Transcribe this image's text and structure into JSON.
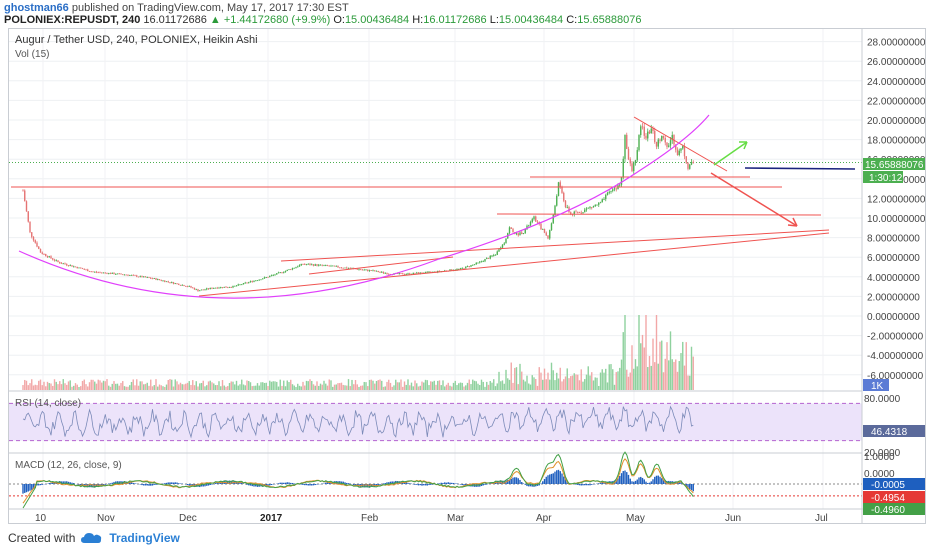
{
  "header": {
    "author": "ghostman66",
    "published": "published on TradingView.com, May 17, 2017 17:30 EST",
    "symbol": "POLONIEX:REPUSDT, 240",
    "last": "16.01172686",
    "change": "▲ +1.44172680 (+9.9%)",
    "ohlc_labels": [
      "O:",
      "H:",
      "L:",
      "C:"
    ],
    "ohlc_values": [
      "15.00436484",
      "16.01172686",
      "15.00436484",
      "15.65888076"
    ]
  },
  "chart": {
    "title": "Augur / Tether USD, 240, POLONIEX, Heikin Ashi",
    "vol_label": "Vol (15)",
    "price_ticks": [
      "28.00000000",
      "26.00000000",
      "24.00000000",
      "22.00000000",
      "20.00000000",
      "18.00000000",
      "16.00000000",
      "14.00000000",
      "12.00000000",
      "10.00000000",
      "8.00000000",
      "6.00000000",
      "4.00000000",
      "2.00000000",
      "0.00000000",
      "-2.00000000",
      "-4.00000000",
      "-6.00000000"
    ],
    "last_price_tag": "15.65888076",
    "countdown_tag": "1:30:12",
    "vol_tag": "1K",
    "rsi_label": "RSI (14, close)",
    "rsi_ticks": [
      "80.0000",
      "20.0000"
    ],
    "rsi_tag": "46.4318",
    "macd_label": "MACD (12, 26, close, 9)",
    "macd_ticks": [
      "1.0000",
      "0.0000"
    ],
    "macd_tags": [
      "-0.0005",
      "-0.4954",
      "-0.4960"
    ],
    "x_ticks": [
      "10",
      "Nov",
      "Dec",
      "2017",
      "Feb",
      "Mar",
      "Apr",
      "May",
      "Jun",
      "Jul"
    ]
  },
  "footer": {
    "created_with": "Created with",
    "brand": "TradingView"
  },
  "colors": {
    "up": "#4caf50",
    "down": "#e57373",
    "trend": "#ef5350",
    "curve": "#e040fb",
    "rsi": "#7b8ab8",
    "macd": "#1e5fbf",
    "signal": "#e0902a"
  },
  "chart_data": {
    "type": "candlestick",
    "title": "Augur / Tether USD, 240, POLONIEX, Heikin Ashi",
    "x_ticks": [
      "10",
      "Nov",
      "Dec",
      "2017",
      "Feb",
      "Mar",
      "Apr",
      "May",
      "Jun",
      "Jul"
    ],
    "ylim": [
      -7,
      29
    ],
    "price_path": [
      [
        0,
        12.8
      ],
      [
        4,
        8.5
      ],
      [
        10,
        6.5
      ],
      [
        20,
        5.5
      ],
      [
        40,
        4.5
      ],
      [
        60,
        4.2
      ],
      [
        75,
        3.8
      ],
      [
        85,
        3.4
      ],
      [
        95,
        3.0
      ],
      [
        100,
        2.6
      ],
      [
        110,
        2.9
      ],
      [
        120,
        3.0
      ],
      [
        130,
        3.5
      ],
      [
        140,
        4.0
      ],
      [
        150,
        4.6
      ],
      [
        160,
        5.3
      ],
      [
        175,
        5.1
      ],
      [
        190,
        4.8
      ],
      [
        200,
        4.6
      ],
      [
        210,
        4.3
      ],
      [
        220,
        4.3
      ],
      [
        235,
        4.5
      ],
      [
        250,
        4.8
      ],
      [
        260,
        5.4
      ],
      [
        270,
        6.3
      ],
      [
        275,
        7.5
      ],
      [
        278,
        9.0
      ],
      [
        282,
        8.3
      ],
      [
        286,
        8.6
      ],
      [
        292,
        10.0
      ],
      [
        296,
        9.0
      ],
      [
        300,
        8.0
      ],
      [
        303,
        10.2
      ],
      [
        306,
        13.5
      ],
      [
        308,
        12.5
      ],
      [
        310,
        11.2
      ],
      [
        313,
        10.4
      ],
      [
        318,
        10.6
      ],
      [
        323,
        11.0
      ],
      [
        330,
        11.5
      ],
      [
        336,
        12.8
      ],
      [
        340,
        13.2
      ],
      [
        342,
        14.0
      ],
      [
        344,
        18.5
      ],
      [
        346,
        16.0
      ],
      [
        348,
        14.8
      ],
      [
        351,
        16.8
      ],
      [
        353,
        19.5
      ],
      [
        356,
        18.2
      ],
      [
        359,
        19.2
      ],
      [
        362,
        17.4
      ],
      [
        365,
        18.6
      ],
      [
        368,
        17.0
      ],
      [
        371,
        18.4
      ],
      [
        374,
        16.6
      ],
      [
        377,
        17.2
      ],
      [
        380,
        15.2
      ],
      [
        382,
        15.7
      ]
    ],
    "rsi_levels": [
      80,
      20
    ],
    "rsi_last": 46.4318,
    "macd_last": [
      -0.0005,
      -0.4954,
      -0.496
    ]
  }
}
